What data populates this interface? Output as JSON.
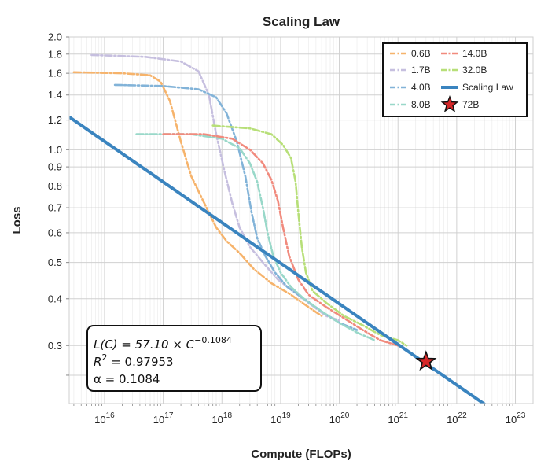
{
  "chart_data": {
    "type": "line",
    "title": "Scaling Law",
    "xlabel": "Compute (FLOPs)",
    "ylabel": "Loss",
    "xscale": "log",
    "yscale": "log",
    "xlim": [
      2500000000000000.0,
      2e+23
    ],
    "ylim": [
      0.21,
      2.0
    ],
    "x_ticks": [
      {
        "value": 1e+16,
        "base": "10",
        "exp": "16"
      },
      {
        "value": 1e+17,
        "base": "10",
        "exp": "17"
      },
      {
        "value": 1e+18,
        "base": "10",
        "exp": "18"
      },
      {
        "value": 1e+19,
        "base": "10",
        "exp": "19"
      },
      {
        "value": 1e+20,
        "base": "10",
        "exp": "20"
      },
      {
        "value": 1e+21,
        "base": "10",
        "exp": "21"
      },
      {
        "value": 1e+22,
        "base": "10",
        "exp": "22"
      },
      {
        "value": 1e+23,
        "base": "10",
        "exp": "23"
      }
    ],
    "y_ticks": [
      {
        "value": 2.0,
        "label": "2.0"
      },
      {
        "value": 1.8,
        "label": "1.8"
      },
      {
        "value": 1.6,
        "label": "1.6"
      },
      {
        "value": 1.4,
        "label": "1.4"
      },
      {
        "value": 1.2,
        "label": "1.2"
      },
      {
        "value": 1.0,
        "label": "1.0"
      },
      {
        "value": 0.9,
        "label": "0.9"
      },
      {
        "value": 0.8,
        "label": "0.8"
      },
      {
        "value": 0.7,
        "label": "0.7"
      },
      {
        "value": 0.6,
        "label": "0.6"
      },
      {
        "value": 0.5,
        "label": "0.5"
      },
      {
        "value": 0.4,
        "label": "0.4"
      },
      {
        "value": 0.3,
        "label": "0.3"
      },
      {
        "value": 0.25,
        "label": ""
      }
    ],
    "grid": true,
    "legend_position": "top-right",
    "scaling_law": {
      "name": "Scaling Law",
      "coefficient": 57.1,
      "exponent": -0.1084,
      "color": "#3a84bf"
    },
    "series": [
      {
        "name": "0.6B",
        "color": "#f6b36b",
        "points": [
          [
            3000000000000000.0,
            1.61
          ],
          [
            2e+16,
            1.6
          ],
          [
            6e+16,
            1.58
          ],
          [
            9e+16,
            1.52
          ],
          [
            1.3e+17,
            1.35
          ],
          [
            2e+17,
            1.05
          ],
          [
            3e+17,
            0.85
          ],
          [
            5e+17,
            0.72
          ],
          [
            8e+17,
            0.62
          ],
          [
            1.2e+18,
            0.57
          ],
          [
            2e+18,
            0.53
          ],
          [
            3.5e+18,
            0.48
          ],
          [
            7e+18,
            0.44
          ],
          [
            1.5e+19,
            0.41
          ],
          [
            3e+19,
            0.38
          ],
          [
            5e+19,
            0.36
          ]
        ]
      },
      {
        "name": "1.7B",
        "color": "#c6bfdf",
        "points": [
          [
            6000000000000000.0,
            1.79
          ],
          [
            5e+16,
            1.77
          ],
          [
            2e+17,
            1.72
          ],
          [
            4e+17,
            1.62
          ],
          [
            6e+17,
            1.4
          ],
          [
            8e+17,
            1.1
          ],
          [
            1.1e+18,
            0.88
          ],
          [
            1.5e+18,
            0.72
          ],
          [
            2e+18,
            0.62
          ],
          [
            3e+18,
            0.55
          ],
          [
            5e+18,
            0.5
          ],
          [
            9e+18,
            0.45
          ],
          [
            1.6e+19,
            0.42
          ],
          [
            3e+19,
            0.39
          ],
          [
            6e+19,
            0.36
          ],
          [
            1e+20,
            0.35
          ]
        ]
      },
      {
        "name": "4.0B",
        "color": "#82b3d8",
        "points": [
          [
            1.5e+16,
            1.49
          ],
          [
            1e+17,
            1.48
          ],
          [
            4e+17,
            1.45
          ],
          [
            8e+17,
            1.38
          ],
          [
            1.2e+18,
            1.25
          ],
          [
            1.8e+18,
            1.05
          ],
          [
            2.5e+18,
            0.85
          ],
          [
            3.2e+18,
            0.68
          ],
          [
            4e+18,
            0.58
          ],
          [
            5.5e+18,
            0.52
          ],
          [
            8e+18,
            0.47
          ],
          [
            1.3e+19,
            0.43
          ],
          [
            2.5e+19,
            0.4
          ],
          [
            5e+19,
            0.37
          ],
          [
            1e+20,
            0.345
          ],
          [
            2e+20,
            0.33
          ]
        ]
      },
      {
        "name": "8.0B",
        "color": "#99d8c9",
        "points": [
          [
            3.5e+16,
            1.1
          ],
          [
            3e+17,
            1.1
          ],
          [
            1e+18,
            1.07
          ],
          [
            2e+18,
            1.01
          ],
          [
            3e+18,
            0.92
          ],
          [
            4e+18,
            0.82
          ],
          [
            5e+18,
            0.7
          ],
          [
            6e+18,
            0.6
          ],
          [
            7.5e+18,
            0.52
          ],
          [
            1e+19,
            0.47
          ],
          [
            1.5e+19,
            0.43
          ],
          [
            2.5e+19,
            0.4
          ],
          [
            5e+19,
            0.37
          ],
          [
            1e+20,
            0.345
          ],
          [
            2e+20,
            0.325
          ],
          [
            4e+20,
            0.31
          ]
        ]
      },
      {
        "name": "14.0B",
        "color": "#f18a7d",
        "points": [
          [
            1e+17,
            1.1
          ],
          [
            5e+17,
            1.1
          ],
          [
            1.5e+18,
            1.07
          ],
          [
            3e+18,
            1.0
          ],
          [
            5e+18,
            0.92
          ],
          [
            7e+18,
            0.83
          ],
          [
            9e+18,
            0.73
          ],
          [
            1.1e+19,
            0.62
          ],
          [
            1.4e+19,
            0.52
          ],
          [
            2e+19,
            0.45
          ],
          [
            3e+19,
            0.41
          ],
          [
            6e+19,
            0.38
          ],
          [
            1.2e+20,
            0.355
          ],
          [
            2.5e+20,
            0.33
          ],
          [
            5e+20,
            0.31
          ],
          [
            1e+21,
            0.3
          ]
        ]
      },
      {
        "name": "32.0B",
        "color": "#b7df78",
        "points": [
          [
            7e+17,
            1.16
          ],
          [
            3e+18,
            1.14
          ],
          [
            7e+18,
            1.1
          ],
          [
            1.1e+19,
            1.03
          ],
          [
            1.5e+19,
            0.95
          ],
          [
            1.8e+19,
            0.82
          ],
          [
            2e+19,
            0.68
          ],
          [
            2.3e+19,
            0.55
          ],
          [
            2.7e+19,
            0.47
          ],
          [
            3.5e+19,
            0.42
          ],
          [
            6e+19,
            0.39
          ],
          [
            1.2e+20,
            0.36
          ],
          [
            2.5e+20,
            0.34
          ],
          [
            5e+20,
            0.32
          ],
          [
            1e+21,
            0.31
          ],
          [
            1.4e+21,
            0.3
          ]
        ]
      }
    ],
    "marker": {
      "name": "72B",
      "x": 3e+21,
      "y": 0.272,
      "color": "#d62728"
    },
    "annotation": {
      "fit_lhs": "L(C) = 57.10 × C",
      "fit_exp": "−0.1084",
      "r2_lhs": "R",
      "r2_sup": "2",
      "r2_rhs": " = 0.97953",
      "alpha": "α = 0.1084"
    }
  }
}
